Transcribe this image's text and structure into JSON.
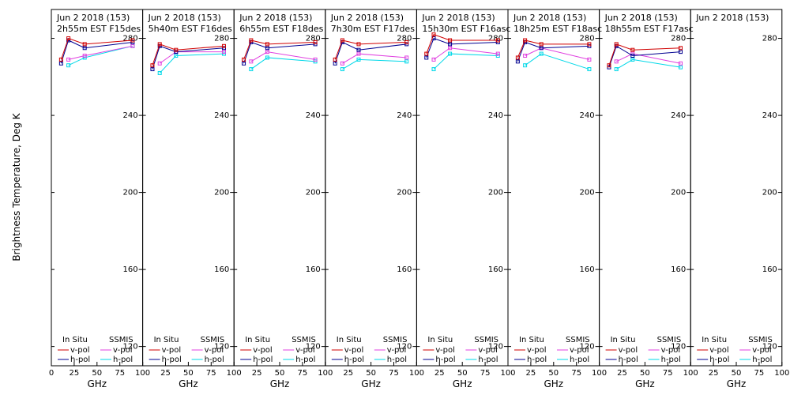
{
  "ylabel": "Brightness Temperature, Deg K",
  "xlabel": "GHz",
  "legend": {
    "in_situ": "In Situ",
    "ssmis": "SSMIS",
    "v_pol": "v-pol",
    "h_pol": "h-pol"
  },
  "colors": {
    "insitu_v": "#d00000",
    "insitu_h": "#000090",
    "ssmis_v": "#e040e0",
    "ssmis_h": "#00d8e8"
  },
  "y_ticks": [
    "120",
    "160",
    "200",
    "240",
    "280"
  ],
  "x_ticks": [
    "0",
    "25",
    "50",
    "75",
    "100"
  ],
  "chart_data": {
    "type": "line",
    "xlim": [
      0,
      100
    ],
    "ylim": [
      110,
      295
    ],
    "frequencies": [
      10.7,
      18.7,
      36.5,
      89
    ],
    "panels": [
      {
        "title1": "Jun 2 2018 (153)",
        "title2": "2h55m EST F15des",
        "insitu_v": [
          269,
          280,
          277,
          279
        ],
        "insitu_h": [
          267,
          279,
          275,
          278
        ],
        "ssmis_v": [
          null,
          269,
          271,
          276
        ],
        "ssmis_h": [
          null,
          266,
          270,
          276
        ]
      },
      {
        "title1": "Jun 2 2018 (153)",
        "title2": "5h40m EST F16des",
        "insitu_v": [
          266,
          277,
          274,
          276
        ],
        "insitu_h": [
          264,
          276,
          273,
          275
        ],
        "ssmis_v": [
          null,
          267,
          273,
          273
        ],
        "ssmis_h": [
          null,
          262,
          271,
          272
        ]
      },
      {
        "title1": "Jun 2 2018 (153)",
        "title2": "6h55m EST F18des",
        "insitu_v": [
          269,
          279,
          277,
          278
        ],
        "insitu_h": [
          267,
          278,
          275,
          277
        ],
        "ssmis_v": [
          null,
          268,
          273,
          269
        ],
        "ssmis_h": [
          null,
          264,
          270,
          268
        ]
      },
      {
        "title1": "Jun 2 2018 (153)",
        "title2": "7h30m EST F17des",
        "insitu_v": [
          269,
          279,
          277,
          278
        ],
        "insitu_h": [
          267,
          278,
          274,
          277
        ],
        "ssmis_v": [
          null,
          267,
          272,
          270
        ],
        "ssmis_h": [
          null,
          264,
          269,
          268
        ]
      },
      {
        "title1": "Jun 2 2018 (153)",
        "title2": "15h30m EST F16asc",
        "insitu_v": [
          272,
          282,
          279,
          279
        ],
        "insitu_h": [
          270,
          280,
          277,
          278
        ],
        "ssmis_v": [
          null,
          269,
          275,
          272
        ],
        "ssmis_h": [
          null,
          264,
          272,
          271
        ]
      },
      {
        "title1": "Jun 2 2018 (153)",
        "title2": "18h25m EST F18asc",
        "insitu_v": [
          270,
          279,
          277,
          277
        ],
        "insitu_h": [
          268,
          278,
          275,
          276
        ],
        "ssmis_v": [
          null,
          271,
          275,
          269
        ],
        "ssmis_h": [
          null,
          266,
          272,
          264
        ]
      },
      {
        "title1": "Jun 2 2018 (153)",
        "title2": "18h55m EST F17asc",
        "insitu_v": [
          266,
          277,
          274,
          275
        ],
        "insitu_h": [
          265,
          276,
          271,
          273
        ],
        "ssmis_v": [
          null,
          268,
          272,
          267
        ],
        "ssmis_h": [
          null,
          264,
          269,
          265
        ]
      },
      {
        "title1": "Jun 2 2018 (153)",
        "title2": "",
        "insitu_v": [],
        "insitu_h": [],
        "ssmis_v": [],
        "ssmis_h": []
      }
    ]
  }
}
